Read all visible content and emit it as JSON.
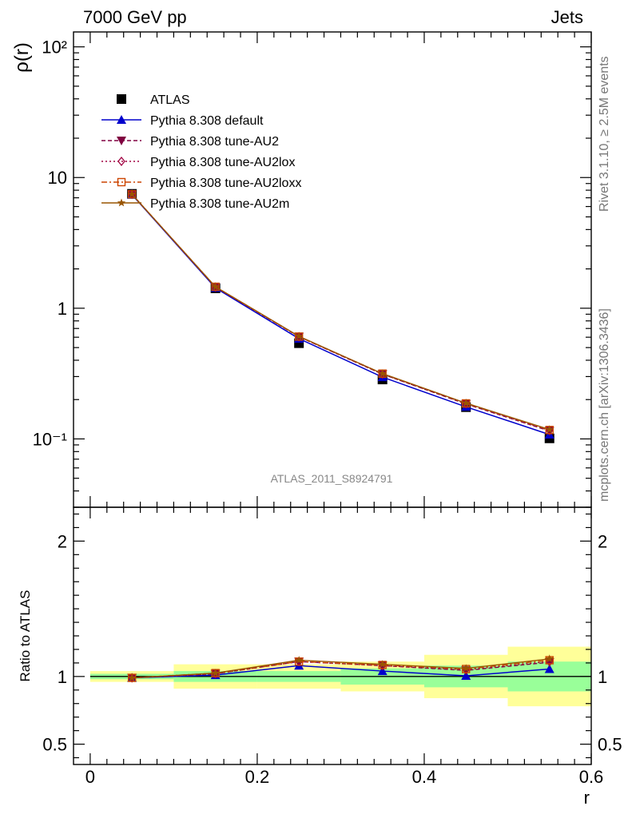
{
  "header": {
    "left_title": "7000 GeV pp",
    "right_title": "Jets"
  },
  "side": {
    "rivet": "Rivet 3.1.10, ≥ 2.5M events",
    "source": "mcplots.cern.ch [arXiv:1306.3436]"
  },
  "colors": {
    "data": "#000000",
    "default": "#0000cc",
    "au2": "#800040",
    "au2lox": "#a00040",
    "au2loxx": "#cc4400",
    "au2m": "#995500",
    "band_inner": "#99ff99",
    "band_outer": "#ffff99",
    "analysis_label": "#888888"
  },
  "chart_data": [
    {
      "type": "line",
      "panel": "main",
      "ylabel": "ρ(r)",
      "yscale": "log",
      "ylim": [
        0.03,
        130
      ],
      "xlim": [
        -0.02,
        0.6
      ],
      "yticks": [
        0.1,
        1,
        10,
        100
      ],
      "ytick_labels": [
        "10⁻¹",
        "1",
        "10",
        "10²"
      ],
      "analysis_label": "ATLAS_2011_S8924791",
      "legend_position": "top-left",
      "x": [
        0.05,
        0.15,
        0.25,
        0.35,
        0.45,
        0.55
      ],
      "series": [
        {
          "name": "ATLAS",
          "style": "data",
          "values": [
            7.5,
            1.42,
            0.54,
            0.285,
            0.175,
            0.101
          ]
        },
        {
          "name": "Pythia 8.308 default",
          "style": "default",
          "values": [
            7.4,
            1.43,
            0.585,
            0.297,
            0.176,
            0.108
          ]
        },
        {
          "name": "Pythia 8.308 tune-AU2",
          "style": "au2",
          "values": [
            7.45,
            1.45,
            0.605,
            0.313,
            0.185,
            0.115
          ]
        },
        {
          "name": "Pythia 8.308 tune-AU2lox",
          "style": "au2lox",
          "values": [
            7.45,
            1.45,
            0.605,
            0.313,
            0.186,
            0.116
          ]
        },
        {
          "name": "Pythia 8.308 tune-AU2loxx",
          "style": "au2loxx",
          "values": [
            7.45,
            1.46,
            0.607,
            0.316,
            0.187,
            0.117
          ]
        },
        {
          "name": "Pythia 8.308 tune-AU2m",
          "style": "au2m",
          "values": [
            7.45,
            1.46,
            0.61,
            0.316,
            0.188,
            0.118
          ]
        }
      ]
    },
    {
      "type": "line",
      "panel": "ratio",
      "ylabel": "Ratio to ATLAS",
      "xlabel": "r",
      "ylim": [
        0.35,
        2.25
      ],
      "xlim": [
        -0.02,
        0.6
      ],
      "yticks": [
        0.5,
        1,
        2
      ],
      "ytick_labels": [
        "0.5",
        "1",
        "2"
      ],
      "xticks": [
        0,
        0.2,
        0.4,
        0.6
      ],
      "xtick_labels": [
        "0",
        "0.2",
        "0.4",
        "0.6"
      ],
      "bands": [
        {
          "x0": 0.0,
          "x1": 0.1,
          "inner": [
            0.98,
            1.02
          ],
          "outer": [
            0.96,
            1.04
          ]
        },
        {
          "x0": 0.1,
          "x1": 0.2,
          "inner": [
            0.96,
            1.04
          ],
          "outer": [
            0.91,
            1.09
          ]
        },
        {
          "x0": 0.2,
          "x1": 0.3,
          "inner": [
            0.96,
            1.04
          ],
          "outer": [
            0.91,
            1.09
          ]
        },
        {
          "x0": 0.3,
          "x1": 0.4,
          "inner": [
            0.94,
            1.06
          ],
          "outer": [
            0.89,
            1.11
          ]
        },
        {
          "x0": 0.4,
          "x1": 0.5,
          "inner": [
            0.92,
            1.08
          ],
          "outer": [
            0.84,
            1.16
          ]
        },
        {
          "x0": 0.5,
          "x1": 0.6,
          "inner": [
            0.89,
            1.11
          ],
          "outer": [
            0.78,
            1.22
          ]
        }
      ],
      "x": [
        0.05,
        0.15,
        0.25,
        0.35,
        0.45,
        0.55
      ],
      "series": [
        {
          "name": "Pythia 8.308 default",
          "style": "default",
          "values": [
            0.99,
            1.01,
            1.08,
            1.04,
            1.005,
            1.055
          ]
        },
        {
          "name": "Pythia 8.308 tune-AU2",
          "style": "au2",
          "values": [
            0.99,
            1.02,
            1.11,
            1.08,
            1.045,
            1.105
          ]
        },
        {
          "name": "Pythia 8.308 tune-AU2lox",
          "style": "au2lox",
          "values": [
            0.99,
            1.02,
            1.11,
            1.08,
            1.05,
            1.11
          ]
        },
        {
          "name": "Pythia 8.308 tune-AU2loxx",
          "style": "au2loxx",
          "values": [
            0.99,
            1.025,
            1.11,
            1.085,
            1.055,
            1.12
          ]
        },
        {
          "name": "Pythia 8.308 tune-AU2m",
          "style": "au2m",
          "values": [
            0.99,
            1.025,
            1.12,
            1.09,
            1.06,
            1.13
          ]
        }
      ]
    }
  ]
}
